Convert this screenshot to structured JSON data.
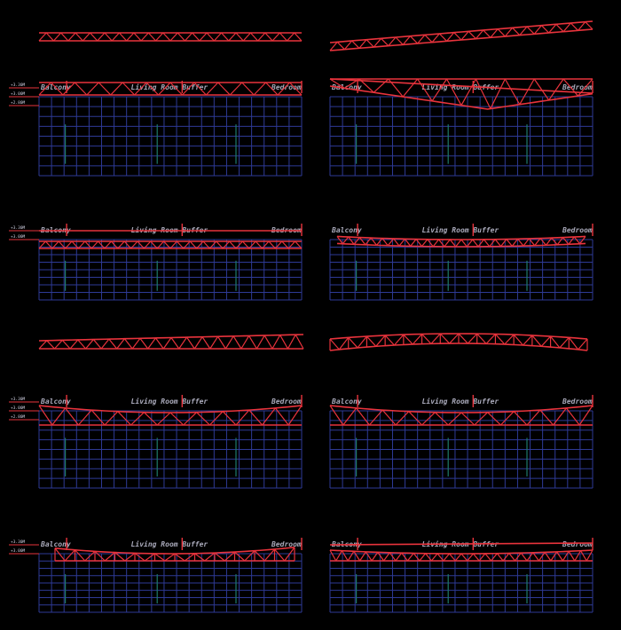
{
  "colors": {
    "background": "#000000",
    "truss": "#e8333c",
    "grid": "#2e3a96",
    "accent_column": "#1f7a6a",
    "label": "#aaaabb"
  },
  "room_labels": {
    "balcony": "Balcony",
    "living_room": "Living Room",
    "buffer": "Buffer",
    "bedroom": "Bedroom"
  },
  "level_marks": [
    "+3.30M",
    "+3.00M",
    "+2.80M"
  ],
  "panels": [
    {
      "id": "section-1-left",
      "truss": "flat",
      "marks": 3
    },
    {
      "id": "section-1-right",
      "truss": "v-dip",
      "marks": 0
    },
    {
      "id": "section-2-left",
      "truss": "flat-band",
      "marks": 2
    },
    {
      "id": "section-2-right",
      "truss": "slight-sag",
      "marks": 0
    },
    {
      "id": "section-3-left",
      "truss": "sag-deep",
      "marks": 3
    },
    {
      "id": "section-3-right",
      "truss": "sag-deep",
      "marks": 0
    },
    {
      "id": "section-4-left",
      "truss": "sag-vertical",
      "marks": 2
    },
    {
      "id": "section-4-right",
      "truss": "sag-shallow",
      "marks": 0
    }
  ],
  "standalone_trusses": [
    {
      "id": "truss-flat"
    },
    {
      "id": "truss-inclined"
    },
    {
      "id": "truss-tapered"
    },
    {
      "id": "truss-vertical-posts"
    }
  ]
}
